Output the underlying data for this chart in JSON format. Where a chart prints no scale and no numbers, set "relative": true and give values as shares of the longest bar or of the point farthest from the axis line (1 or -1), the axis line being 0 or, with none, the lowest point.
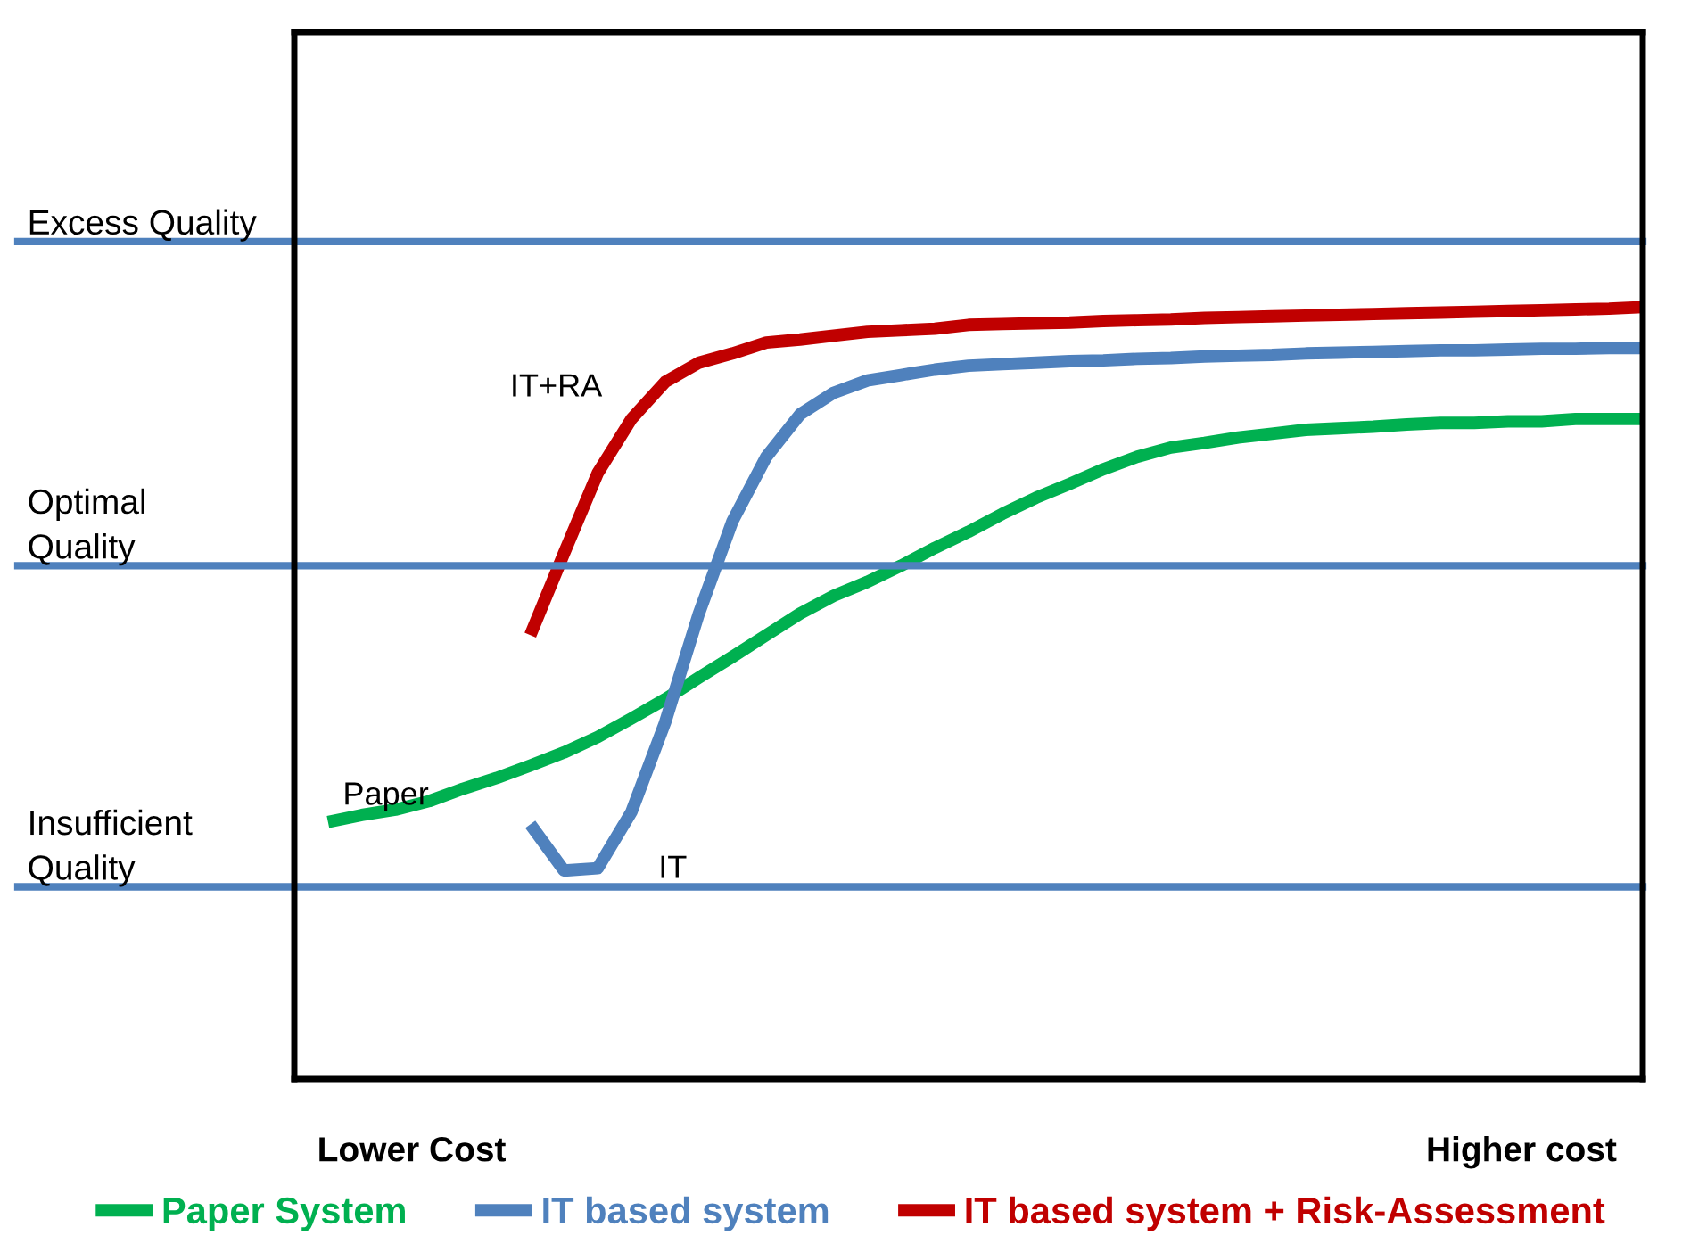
{
  "chart_data": {
    "type": "line",
    "relative": true,
    "legend": "bottom",
    "marker": "none",
    "line_style": "solid",
    "categories": [
      null,
      null,
      null,
      null,
      null,
      null,
      null,
      null,
      null,
      null,
      null,
      null,
      null,
      null,
      null,
      null,
      null,
      null,
      null,
      null,
      null,
      null,
      null,
      null,
      null,
      null,
      null,
      null,
      null,
      null,
      null,
      null,
      null,
      null,
      null,
      null,
      null,
      null,
      null,
      null,
      null
    ],
    "series": [
      {
        "name": "Paper System",
        "color": "#00b050",
        "values": [
          null,
          0.333,
          0.342,
          0.349,
          0.36,
          0.376,
          0.39,
          0.406,
          0.423,
          0.443,
          0.467,
          0.492,
          0.52,
          0.547,
          0.575,
          0.603,
          0.626,
          0.644,
          0.665,
          0.688,
          0.709,
          0.732,
          0.753,
          0.771,
          0.79,
          0.806,
          0.818,
          0.824,
          0.831,
          0.836,
          0.841,
          0.843,
          0.845,
          0.848,
          0.85,
          0.85,
          0.852,
          0.852,
          0.855,
          0.855,
          0.855
        ]
      },
      {
        "name": "IT based system",
        "color": "#4f81bd",
        "values": [
          null,
          null,
          null,
          null,
          null,
          null,
          null,
          0.33,
          0.27,
          0.273,
          0.346,
          0.462,
          0.603,
          0.723,
          0.806,
          0.861,
          0.889,
          0.905,
          0.912,
          0.919,
          0.924,
          0.926,
          0.928,
          0.93,
          0.931,
          0.933,
          0.934,
          0.936,
          0.937,
          0.938,
          0.94,
          0.941,
          0.942,
          0.943,
          0.944,
          0.944,
          0.945,
          0.946,
          0.946,
          0.947,
          0.947
        ]
      },
      {
        "name": "IT based system + Risk-Assessment",
        "color": "#c00000",
        "values": [
          null,
          null,
          null,
          null,
          null,
          null,
          null,
          0.575,
          0.681,
          0.785,
          0.855,
          0.903,
          0.928,
          0.94,
          0.954,
          0.958,
          0.963,
          0.968,
          0.97,
          0.972,
          0.977,
          0.978,
          0.979,
          0.98,
          0.982,
          0.983,
          0.984,
          0.986,
          0.987,
          0.988,
          0.989,
          0.99,
          0.991,
          0.992,
          0.993,
          0.994,
          0.995,
          0.996,
          0.997,
          0.998,
          1.0
        ]
      }
    ],
    "ref_lines": [
      {
        "axis": "y",
        "value": 1.085,
        "label": "Excess Quality",
        "color": "#4f81bd",
        "line_style": "solid"
      },
      {
        "axis": "y",
        "value": 0.665,
        "label": "Optimal\nQuality",
        "color": "#4f81bd",
        "line_style": "solid"
      },
      {
        "axis": "y",
        "value": 0.249,
        "label": "Insufficient\nQuality",
        "color": "#4f81bd",
        "line_style": "solid"
      }
    ],
    "annotations": [
      "Paper",
      "IT",
      "IT+RA",
      "Lower Cost",
      "Higher cost"
    ]
  }
}
